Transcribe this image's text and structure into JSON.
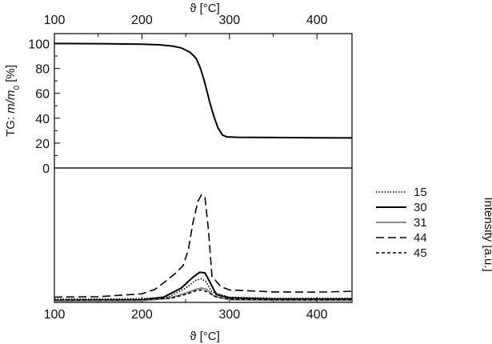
{
  "chart_data": [
    {
      "type": "line",
      "panel": "top",
      "x_label": "ϑ [°C]",
      "y_label": "TG: m/m0 [%]",
      "y_label_parts": {
        "prefix": "TG: ",
        "m": "m",
        "slash_m": "/m",
        "sub": "0",
        "suffix": " [%]"
      },
      "xlim": [
        100,
        440
      ],
      "ylim": [
        0,
        108
      ],
      "x_ticks": [
        100,
        200,
        300,
        400
      ],
      "y_ticks": [
        0,
        20,
        40,
        60,
        80,
        100
      ],
      "series": [
        {
          "color": "#000000",
          "style": "solid",
          "points": [
            [
              100,
              100
            ],
            [
              150,
              99.9
            ],
            [
              200,
              99.5
            ],
            [
              220,
              99
            ],
            [
              235,
              98
            ],
            [
              245,
              96.5
            ],
            [
              255,
              93
            ],
            [
              262,
              88
            ],
            [
              267,
              80
            ],
            [
              272,
              68
            ],
            [
              277,
              54
            ],
            [
              282,
              42
            ],
            [
              287,
              32
            ],
            [
              292,
              26.5
            ],
            [
              297,
              25
            ],
            [
              310,
              24.7
            ],
            [
              350,
              24.5
            ],
            [
              400,
              24.3
            ],
            [
              440,
              24.2
            ]
          ]
        }
      ]
    },
    {
      "type": "line",
      "panel": "bottom",
      "x_label": "ϑ [°C]",
      "y_label": "Intensity [a.u.]",
      "xlim": [
        100,
        440
      ],
      "ylim": [
        0,
        100
      ],
      "x_ticks": [
        100,
        200,
        300,
        400
      ],
      "legend_position": "top-right",
      "series": [
        {
          "name": "15",
          "color": "#000000",
          "style": "dotted",
          "points": [
            [
              100,
              2.5
            ],
            [
              200,
              2.8
            ],
            [
              230,
              4
            ],
            [
              250,
              11
            ],
            [
              262,
              17
            ],
            [
              268,
              18
            ],
            [
              273,
              16
            ],
            [
              280,
              8
            ],
            [
              300,
              4
            ],
            [
              350,
              3.2
            ],
            [
              440,
              3.2
            ]
          ]
        },
        {
          "name": "30",
          "color": "#000000",
          "style": "solid",
          "points": [
            [
              100,
              1.5
            ],
            [
              200,
              2
            ],
            [
              225,
              4
            ],
            [
              245,
              11
            ],
            [
              258,
              19
            ],
            [
              266,
              23
            ],
            [
              272,
              22.5
            ],
            [
              278,
              15
            ],
            [
              285,
              6
            ],
            [
              300,
              3.5
            ],
            [
              350,
              2.5
            ],
            [
              440,
              2.5
            ]
          ]
        },
        {
          "name": "31",
          "color": "#888888",
          "style": "solid",
          "points": [
            [
              100,
              1
            ],
            [
              200,
              1.2
            ],
            [
              230,
              3
            ],
            [
              250,
              7
            ],
            [
              262,
              10
            ],
            [
              268,
              11
            ],
            [
              274,
              10
            ],
            [
              282,
              5
            ],
            [
              300,
              2
            ],
            [
              350,
              1.5
            ],
            [
              440,
              1.5
            ]
          ]
        },
        {
          "name": "44",
          "color": "#000000",
          "style": "dashed",
          "points": [
            [
              100,
              4
            ],
            [
              150,
              4.3
            ],
            [
              200,
              6.5
            ],
            [
              215,
              10
            ],
            [
              225,
              15
            ],
            [
              238,
              22
            ],
            [
              247,
              28
            ],
            [
              253,
              40
            ],
            [
              258,
              60
            ],
            [
              264,
              77
            ],
            [
              268,
              82
            ],
            [
              272,
              80
            ],
            [
              276,
              55
            ],
            [
              280,
              20
            ],
            [
              290,
              12
            ],
            [
              300,
              9.5
            ],
            [
              350,
              8
            ],
            [
              400,
              7.8
            ],
            [
              440,
              8.5
            ]
          ]
        },
        {
          "name": "45",
          "color": "#000000",
          "style": "short-dashed",
          "points": [
            [
              100,
              1.8
            ],
            [
              200,
              2
            ],
            [
              235,
              3.5
            ],
            [
              252,
              6.5
            ],
            [
              262,
              9
            ],
            [
              268,
              9.5
            ],
            [
              275,
              8
            ],
            [
              285,
              4
            ],
            [
              300,
              2.5
            ],
            [
              350,
              2
            ],
            [
              440,
              2
            ]
          ]
        }
      ]
    }
  ]
}
